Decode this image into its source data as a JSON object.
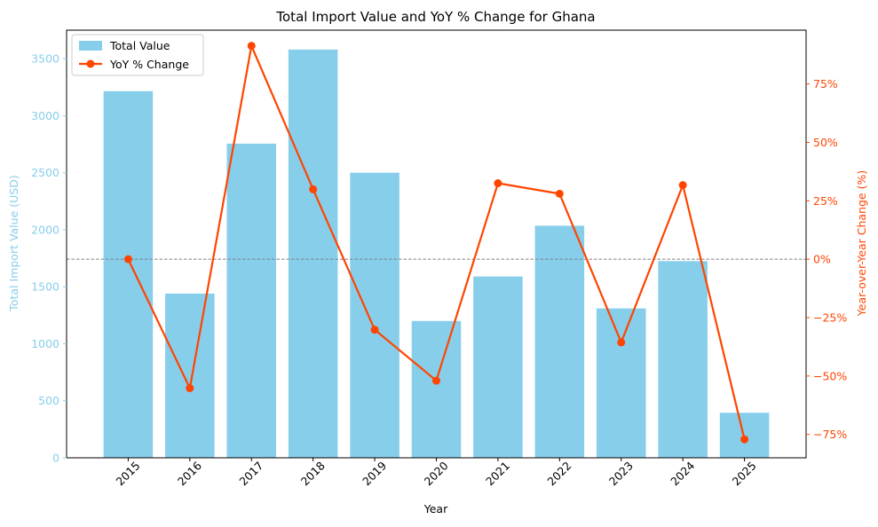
{
  "chart_data": {
    "type": "bar",
    "title": "Total Import Value and YoY % Change for Ghana",
    "xlabel": "Year",
    "ylabel": "Total Import Value (USD)",
    "y2label": "Year-over-Year Change (%)",
    "categories": [
      "2015",
      "2016",
      "2017",
      "2018",
      "2019",
      "2020",
      "2021",
      "2022",
      "2023",
      "2024",
      "2025"
    ],
    "series": [
      {
        "name": "Total Value",
        "type": "bar",
        "axis": "left",
        "color": "#87CEEB",
        "values": [
          3215,
          1440,
          2755,
          3580,
          2500,
          1200,
          1590,
          2035,
          1310,
          1725,
          395
        ]
      },
      {
        "name": "YoY % Change",
        "type": "line",
        "axis": "right",
        "color": "#FF4500",
        "values": [
          0,
          -55.2,
          91.3,
          29.9,
          -30.2,
          -52.0,
          32.5,
          28.0,
          -35.6,
          31.7,
          -77.1
        ]
      }
    ],
    "ylim": [
      0,
      3750
    ],
    "yticks": [
      0,
      500,
      1000,
      1500,
      2000,
      2500,
      3000,
      3500
    ],
    "y2lim": [
      -85,
      98
    ],
    "y2ticks": [
      -75,
      -50,
      -25,
      0,
      25,
      50,
      75
    ],
    "y2tick_labels": [
      "−75%",
      "−50%",
      "−25%",
      "0%",
      "25%",
      "50%",
      "75%"
    ],
    "reference_line": 0,
    "legend_position": "top-left",
    "grid": false
  }
}
